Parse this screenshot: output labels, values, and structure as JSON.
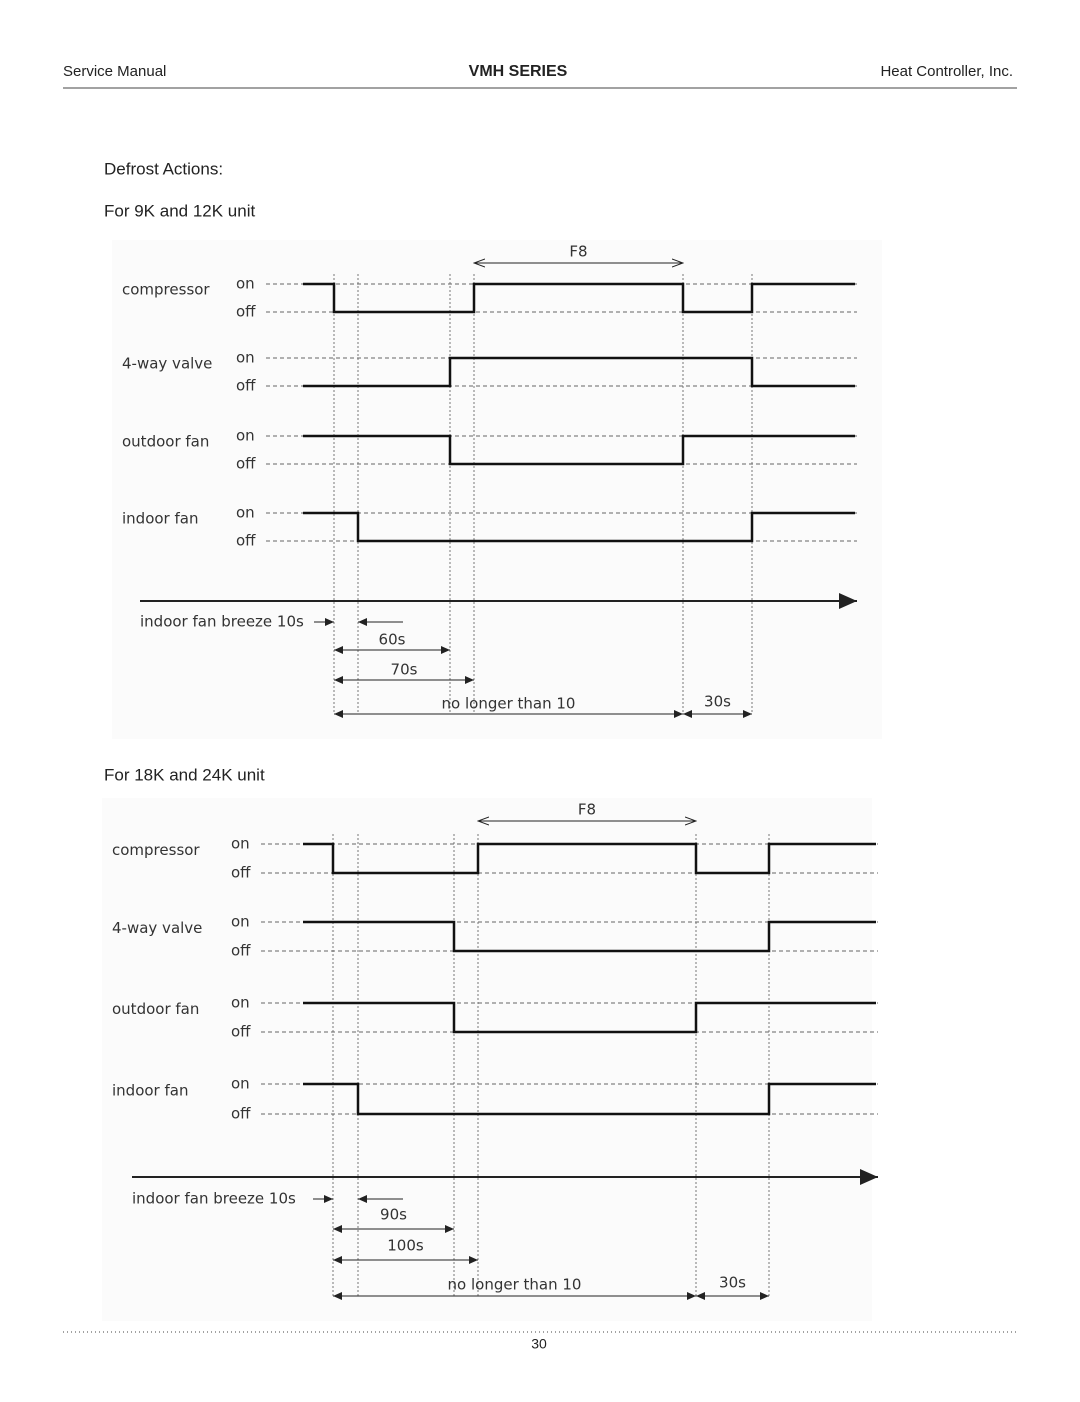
{
  "header": {
    "left": "Service Manual",
    "center": "VMH SERIES",
    "right": "Heat Controller, Inc."
  },
  "section_title": "Defrost Actions:",
  "diagrams": [
    {
      "title": "For 9K and 12K unit",
      "period_label": "F8",
      "signals": [
        {
          "name": "compressor",
          "on": "on",
          "off": "off"
        },
        {
          "name": "4-way valve",
          "on": "on",
          "off": "off"
        },
        {
          "name": "outdoor fan",
          "on": "on",
          "off": "off"
        },
        {
          "name": "indoor fan",
          "on": "on",
          "off": "off"
        }
      ],
      "timings": {
        "breeze": "indoor fan breeze 10s",
        "first": "60s",
        "second": "70s",
        "max": "no longer than 10",
        "last": "30s"
      }
    },
    {
      "title": "For 18K and 24K unit",
      "period_label": "F8",
      "signals": [
        {
          "name": "compressor",
          "on": "on",
          "off": "off"
        },
        {
          "name": "4-way valve",
          "on": "on",
          "off": "off"
        },
        {
          "name": "outdoor fan",
          "on": "on",
          "off": "off"
        },
        {
          "name": "indoor fan",
          "on": "on",
          "off": "off"
        }
      ],
      "timings": {
        "breeze": "indoor fan breeze 10s",
        "first": "90s",
        "second": "100s",
        "max": "no longer than 10",
        "last": "30s"
      }
    }
  ],
  "footer": {
    "page": "30"
  }
}
